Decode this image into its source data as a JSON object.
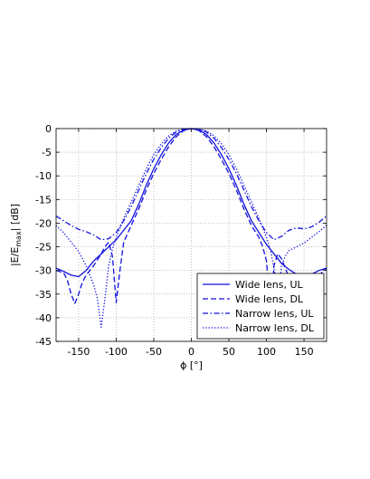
{
  "chart_data": {
    "type": "line",
    "title": "",
    "xlabel": "ϕ [°]",
    "ylabel": "|E/E_max| [dB]",
    "xlim": [
      -180,
      180
    ],
    "ylim": [
      -45,
      0
    ],
    "xticks": [
      -150,
      -100,
      -50,
      0,
      50,
      100,
      150
    ],
    "yticks": [
      0,
      -5,
      -10,
      -15,
      -20,
      -25,
      -30,
      -35,
      -40,
      -45
    ],
    "grid": true,
    "legend_position": "bottom-right",
    "line_color": "#1010e0",
    "series": [
      {
        "name": "Wide lens, UL",
        "style": "solid",
        "x": [
          -180,
          -170,
          -160,
          -150,
          -140,
          -130,
          -120,
          -110,
          -100,
          -90,
          -80,
          -70,
          -60,
          -50,
          -40,
          -30,
          -20,
          -10,
          0,
          10,
          20,
          30,
          40,
          50,
          60,
          70,
          80,
          90,
          100,
          110,
          120,
          130,
          140,
          150,
          160,
          170,
          180
        ],
        "y": [
          -29.5,
          -30.2,
          -31,
          -31.3,
          -30,
          -28,
          -26.5,
          -25,
          -23.5,
          -21.5,
          -19.5,
          -16,
          -12,
          -8.5,
          -5.5,
          -3,
          -1.2,
          -0.3,
          0,
          -0.3,
          -1.2,
          -3,
          -5.5,
          -8.5,
          -12,
          -16,
          -19.5,
          -22,
          -24.5,
          -26.5,
          -28.5,
          -29.8,
          -30.8,
          -31.3,
          -30.8,
          -30,
          -29.5
        ]
      },
      {
        "name": "Wide lens, DL",
        "style": "dashed",
        "x": [
          -180,
          -170,
          -165,
          -160,
          -155,
          -150,
          -145,
          -140,
          -130,
          -120,
          -115,
          -110,
          -105,
          -100,
          -95,
          -90,
          -80,
          -70,
          -60,
          -50,
          -40,
          -30,
          -20,
          -10,
          0,
          10,
          20,
          30,
          40,
          50,
          60,
          70,
          80,
          90,
          95,
          100,
          103,
          105,
          108,
          110,
          115,
          120,
          125,
          130,
          140,
          150,
          160,
          170,
          180
        ],
        "y": [
          -30,
          -30.5,
          -32,
          -35,
          -37,
          -35,
          -32.5,
          -31,
          -29,
          -26.5,
          -25,
          -24,
          -27,
          -36.8,
          -30,
          -24,
          -20.5,
          -17,
          -13,
          -9.5,
          -6.5,
          -3.8,
          -1.7,
          -0.4,
          0,
          -0.4,
          -1.7,
          -3.8,
          -6.5,
          -9.5,
          -13,
          -17,
          -20.5,
          -23,
          -25,
          -28,
          -33.5,
          -36,
          -33,
          -29,
          -26.5,
          -27.5,
          -29.5,
          -31.5,
          -32.5,
          -32.5,
          -32,
          -31,
          -29.5
        ]
      },
      {
        "name": "Narrow lens, UL",
        "style": "dashdot",
        "x": [
          -180,
          -170,
          -160,
          -150,
          -140,
          -130,
          -120,
          -110,
          -100,
          -90,
          -80,
          -70,
          -60,
          -50,
          -40,
          -30,
          -20,
          -10,
          0,
          10,
          20,
          30,
          40,
          50,
          60,
          70,
          80,
          90,
          100,
          110,
          120,
          130,
          140,
          150,
          160,
          170,
          180
        ],
        "y": [
          -18.5,
          -19.5,
          -20.5,
          -21.3,
          -21.8,
          -22.5,
          -23.5,
          -23.3,
          -22,
          -19.5,
          -16.5,
          -13,
          -9.5,
          -6.5,
          -4,
          -2,
          -0.7,
          -0.1,
          0,
          -0.1,
          -0.7,
          -2,
          -4,
          -6.5,
          -9.5,
          -13,
          -16.5,
          -19.5,
          -22,
          -23.5,
          -22.8,
          -21.5,
          -21,
          -21.2,
          -20.8,
          -19.8,
          -18.5
        ]
      },
      {
        "name": "Narrow lens, DL",
        "style": "dotted",
        "x": [
          -180,
          -170,
          -160,
          -150,
          -140,
          -135,
          -130,
          -125,
          -120,
          -115,
          -110,
          -105,
          -100,
          -90,
          -80,
          -70,
          -60,
          -50,
          -40,
          -30,
          -20,
          -10,
          0,
          10,
          20,
          30,
          40,
          50,
          60,
          70,
          80,
          90,
          100,
          105,
          110,
          113,
          115,
          118,
          120,
          125,
          130,
          140,
          150,
          160,
          170,
          180
        ],
        "y": [
          -20.5,
          -22,
          -24,
          -26,
          -29,
          -31,
          -33,
          -36,
          -42,
          -36,
          -29,
          -25.5,
          -23,
          -19,
          -15.5,
          -12,
          -8.5,
          -5.5,
          -3.2,
          -1.5,
          -0.5,
          -0.1,
          0,
          -0.1,
          -0.5,
          -1.5,
          -3.2,
          -5.5,
          -8.5,
          -12,
          -15.5,
          -19,
          -23,
          -25.5,
          -29.5,
          -32.5,
          -34.5,
          -32,
          -29,
          -27,
          -25.8,
          -25,
          -24.2,
          -23,
          -21.8,
          -20.5
        ]
      }
    ]
  }
}
